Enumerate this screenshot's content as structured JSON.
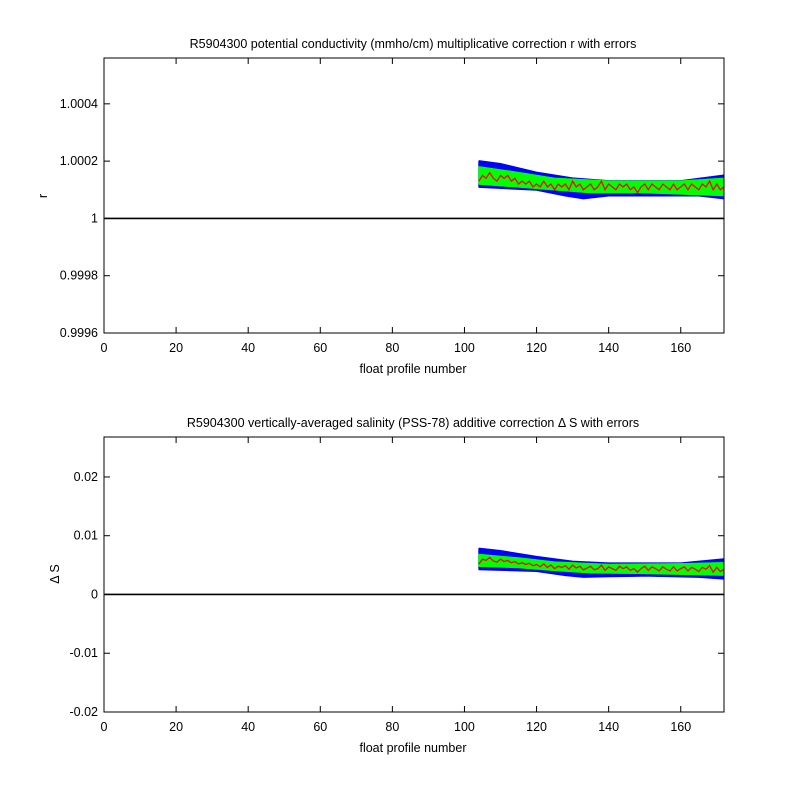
{
  "chart_data": [
    {
      "type": "line",
      "title": "R5904300 potential conductivity (mmho/cm) multiplicative correction r with errors",
      "xlabel": "float profile number",
      "ylabel": "r",
      "xlim": [
        0,
        172
      ],
      "ylim": [
        0.9996,
        1.00056
      ],
      "xticks": [
        "0",
        "20",
        "40",
        "60",
        "80",
        "100",
        "120",
        "140",
        "160"
      ],
      "yticks": [
        "0.9996",
        "0.9998",
        "1",
        "1.0002",
        "1.0004"
      ],
      "ytick_values": [
        0.9996,
        0.9998,
        1.0,
        1.0002,
        1.0004
      ],
      "reference_line": 1.0,
      "x_start": 104,
      "x_end": 172,
      "series": [
        {
          "role": "correction",
          "color": "#ff0000",
          "values": [
            1.00013,
            1.00015,
            1.00014,
            1.00016,
            1.00014,
            1.00013,
            1.00015,
            1.00014,
            1.00015,
            1.00013,
            1.00014,
            1.00012,
            1.00013,
            1.00012,
            1.00013,
            1.00011,
            1.00012,
            1.00011,
            1.00013,
            1.00011,
            1.00012,
            1.0001,
            1.00012,
            1.00011,
            1.00012,
            1.0001,
            1.00013,
            1.00011,
            1.00012,
            1.0001,
            1.00011,
            1.00012,
            1.0001,
            1.00011,
            1.00013,
            1.0001,
            1.00012,
            1.00011,
            1.0001,
            1.00012,
            1.00011,
            1.00012,
            1.0001,
            1.00011,
            1.00009,
            1.00011,
            1.00012,
            1.0001,
            1.00012,
            1.00011,
            1.0001,
            1.00012,
            1.00011,
            1.0001,
            1.00012,
            1.0001,
            1.00011,
            1.00012,
            1.0001,
            1.00012,
            1.00011,
            1.0001,
            1.00012,
            1.00011,
            1.00013,
            1.0001,
            1.00012,
            1.0001,
            1.00011
          ]
        },
        {
          "role": "inner-error",
          "color": "#00ff00",
          "upper": [
            [
              104,
              1.00018
            ],
            [
              115,
              1.00016
            ],
            [
              125,
              1.00014
            ],
            [
              140,
              1.00013
            ],
            [
              160,
              1.00013
            ],
            [
              172,
              1.00014
            ]
          ],
          "lower": [
            [
              104,
              1.00012
            ],
            [
              115,
              1.00011
            ],
            [
              125,
              1.0001
            ],
            [
              135,
              1.00009
            ],
            [
              150,
              1.00009
            ],
            [
              172,
              1.00008
            ]
          ]
        },
        {
          "role": "outer-error",
          "color": "#0000ff",
          "upper": [
            [
              104,
              1.0002
            ],
            [
              110,
              1.00019
            ],
            [
              120,
              1.00016
            ],
            [
              130,
              1.00014
            ],
            [
              140,
              1.00013
            ],
            [
              160,
              1.00013
            ],
            [
              172,
              1.00015
            ]
          ],
          "lower": [
            [
              104,
              1.00011
            ],
            [
              120,
              1.0001
            ],
            [
              128,
              1.00008
            ],
            [
              133,
              1.00007
            ],
            [
              140,
              1.00008
            ],
            [
              150,
              1.00008
            ],
            [
              165,
              1.00008
            ],
            [
              172,
              1.00007
            ]
          ]
        }
      ]
    },
    {
      "type": "line",
      "title": "R5904300 vertically-averaged salinity (PSS-78) additive correction Δ S with errors",
      "xlabel": "float profile number",
      "ylabel": "Δ S",
      "xlim": [
        0,
        172
      ],
      "ylim": [
        -0.02,
        0.0268
      ],
      "xticks": [
        "0",
        "20",
        "40",
        "60",
        "80",
        "100",
        "120",
        "140",
        "160"
      ],
      "yticks": [
        "-0.02",
        "-0.01",
        "0",
        "0.01",
        "0.02"
      ],
      "ytick_values": [
        -0.02,
        -0.01,
        0.0,
        0.01,
        0.02
      ],
      "reference_line": 0.0,
      "x_start": 104,
      "x_end": 172,
      "series": [
        {
          "role": "correction",
          "color": "#ff0000",
          "values": [
            0.0052,
            0.006,
            0.0058,
            0.0063,
            0.0057,
            0.0055,
            0.006,
            0.0056,
            0.0058,
            0.0054,
            0.0056,
            0.0052,
            0.0054,
            0.0051,
            0.0053,
            0.0049,
            0.0051,
            0.0047,
            0.0052,
            0.0046,
            0.005,
            0.0044,
            0.0048,
            0.0046,
            0.0049,
            0.0043,
            0.005,
            0.0045,
            0.0048,
            0.0042,
            0.0045,
            0.0048,
            0.0042,
            0.0044,
            0.005,
            0.0041,
            0.0047,
            0.0044,
            0.0041,
            0.0048,
            0.0044,
            0.0047,
            0.0041,
            0.0044,
            0.0038,
            0.0044,
            0.0048,
            0.0041,
            0.0047,
            0.0044,
            0.004,
            0.0047,
            0.0043,
            0.004,
            0.0047,
            0.004,
            0.0044,
            0.0047,
            0.004,
            0.0046,
            0.0043,
            0.0039,
            0.0046,
            0.0043,
            0.0049,
            0.0038,
            0.0046,
            0.0039,
            0.0043
          ]
        },
        {
          "role": "inner-error",
          "color": "#00ff00",
          "upper": [
            [
              104,
              0.0068
            ],
            [
              115,
              0.0062
            ],
            [
              125,
              0.0055
            ],
            [
              140,
              0.0051
            ],
            [
              160,
              0.0052
            ],
            [
              172,
              0.0054
            ]
          ],
          "lower": [
            [
              104,
              0.0048
            ],
            [
              115,
              0.0046
            ],
            [
              125,
              0.0041
            ],
            [
              135,
              0.0037
            ],
            [
              150,
              0.0036
            ],
            [
              172,
              0.0033
            ]
          ]
        },
        {
          "role": "outer-error",
          "color": "#0000ff",
          "upper": [
            [
              104,
              0.0078
            ],
            [
              110,
              0.0074
            ],
            [
              120,
              0.0064
            ],
            [
              130,
              0.0056
            ],
            [
              140,
              0.0053
            ],
            [
              160,
              0.0053
            ],
            [
              172,
              0.006
            ]
          ],
          "lower": [
            [
              104,
              0.0043
            ],
            [
              120,
              0.004
            ],
            [
              128,
              0.0033
            ],
            [
              133,
              0.003
            ],
            [
              140,
              0.0031
            ],
            [
              150,
              0.0032
            ],
            [
              165,
              0.003
            ],
            [
              172,
              0.0027
            ]
          ]
        }
      ]
    }
  ]
}
